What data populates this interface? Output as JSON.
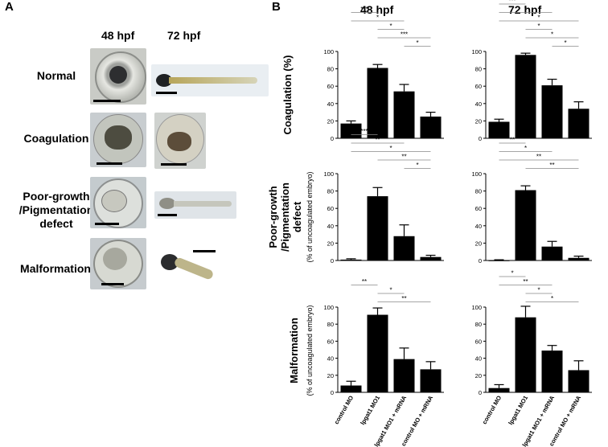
{
  "panel_a": {
    "letter": "A",
    "columns": [
      "48 hpf",
      "72 hpf"
    ],
    "rows": [
      "Normal",
      "Coagulation",
      "Poor-growth\n/Pigmentation\ndefect",
      "Malformation"
    ]
  },
  "panel_b": {
    "letter": "B",
    "columns": [
      "48 hpf",
      "72 hpf"
    ],
    "x_categories": [
      "control MO",
      "lpgat1 MO1",
      "lpgat1 MO1 + mRNA",
      "control MO + mRNA"
    ],
    "row_labels": [
      {
        "main": "Coagulation (%)",
        "sub": ""
      },
      {
        "main": "Poor-growth\n/Pigmentation\ndefect",
        "sub": "(% of uncoagulated embryo)"
      },
      {
        "main": "Malformation",
        "sub": "(% of uncoagulated embryo)"
      }
    ]
  },
  "chart_data": [
    {
      "type": "bar",
      "id": "coag-48",
      "categories": [
        "control MO",
        "lpgat1 MO1",
        "lpgat1 MO1 + mRNA",
        "control MO + mRNA"
      ],
      "values": [
        17,
        81,
        54,
        25
      ],
      "errors": [
        3,
        4,
        8,
        5
      ],
      "ylim": [
        0,
        100
      ],
      "yticks": [
        0,
        20,
        40,
        60,
        80,
        100
      ],
      "sig": [
        [
          "***",
          0,
          1
        ],
        [
          "*",
          0,
          2
        ],
        [
          "*",
          1,
          2
        ],
        [
          "***",
          1,
          3
        ],
        [
          "*",
          2,
          3
        ]
      ]
    },
    {
      "type": "bar",
      "id": "coag-72",
      "categories": [
        "control MO",
        "lpgat1 MO1",
        "lpgat1 MO1 + mRNA",
        "control MO + mRNA"
      ],
      "values": [
        19,
        96,
        61,
        34
      ],
      "errors": [
        3,
        2,
        7,
        8
      ],
      "ylim": [
        0,
        100
      ],
      "yticks": [
        0,
        20,
        40,
        60,
        80,
        100
      ],
      "sig": [
        [
          "***",
          0,
          1
        ],
        [
          "*",
          0,
          2
        ],
        [
          "*",
          0,
          3
        ],
        [
          "*",
          1,
          2
        ],
        [
          "*",
          1,
          3
        ],
        [
          "*",
          2,
          3
        ]
      ]
    },
    {
      "type": "bar",
      "id": "poor-48",
      "categories": [
        "control MO",
        "lpgat1 MO1",
        "lpgat1 MO1 + mRNA",
        "control MO + mRNA"
      ],
      "values": [
        1,
        74,
        28,
        4
      ],
      "errors": [
        1,
        10,
        13,
        2
      ],
      "ylim": [
        0,
        100
      ],
      "yticks": [
        0,
        20,
        40,
        60,
        80,
        100
      ],
      "sig": [
        [
          "***",
          0,
          1
        ],
        [
          "**",
          0,
          2
        ],
        [
          "*",
          0,
          3
        ],
        [
          "**",
          1,
          3
        ],
        [
          "*",
          2,
          3
        ]
      ]
    },
    {
      "type": "bar",
      "id": "poor-72",
      "categories": [
        "control MO",
        "lpgat1 MO1",
        "lpgat1 MO1 + mRNA",
        "control MO + mRNA"
      ],
      "values": [
        0,
        81,
        16,
        3
      ],
      "errors": [
        0,
        5,
        6,
        2
      ],
      "ylim": [
        0,
        100
      ],
      "yticks": [
        0,
        20,
        40,
        60,
        80,
        100
      ],
      "sig": [
        [
          "**",
          0,
          1
        ],
        [
          "*",
          0,
          2
        ],
        [
          "**",
          0,
          3
        ],
        [
          "**",
          1,
          3
        ]
      ]
    },
    {
      "type": "bar",
      "id": "malf-48",
      "categories": [
        "control MO",
        "lpgat1 MO1",
        "lpgat1 MO1 + mRNA",
        "control MO + mRNA"
      ],
      "values": [
        8,
        91,
        39,
        27
      ],
      "errors": [
        5,
        8,
        13,
        9
      ],
      "ylim": [
        0,
        100
      ],
      "yticks": [
        0,
        20,
        40,
        60,
        80,
        100
      ],
      "sig": [
        [
          "**",
          0,
          1
        ],
        [
          "*",
          1,
          2
        ],
        [
          "**",
          1,
          3
        ]
      ]
    },
    {
      "type": "bar",
      "id": "malf-72",
      "categories": [
        "control MO",
        "lpgat1 MO1",
        "lpgat1 MO1 + mRNA",
        "control MO + mRNA"
      ],
      "values": [
        5,
        88,
        49,
        26
      ],
      "errors": [
        4,
        13,
        6,
        11
      ],
      "ylim": [
        0,
        100
      ],
      "yticks": [
        0,
        20,
        40,
        60,
        80,
        100
      ],
      "sig": [
        [
          "*",
          0,
          1
        ],
        [
          "**",
          0,
          2
        ],
        [
          "*",
          1,
          2
        ],
        [
          "*",
          1,
          3
        ]
      ]
    }
  ]
}
